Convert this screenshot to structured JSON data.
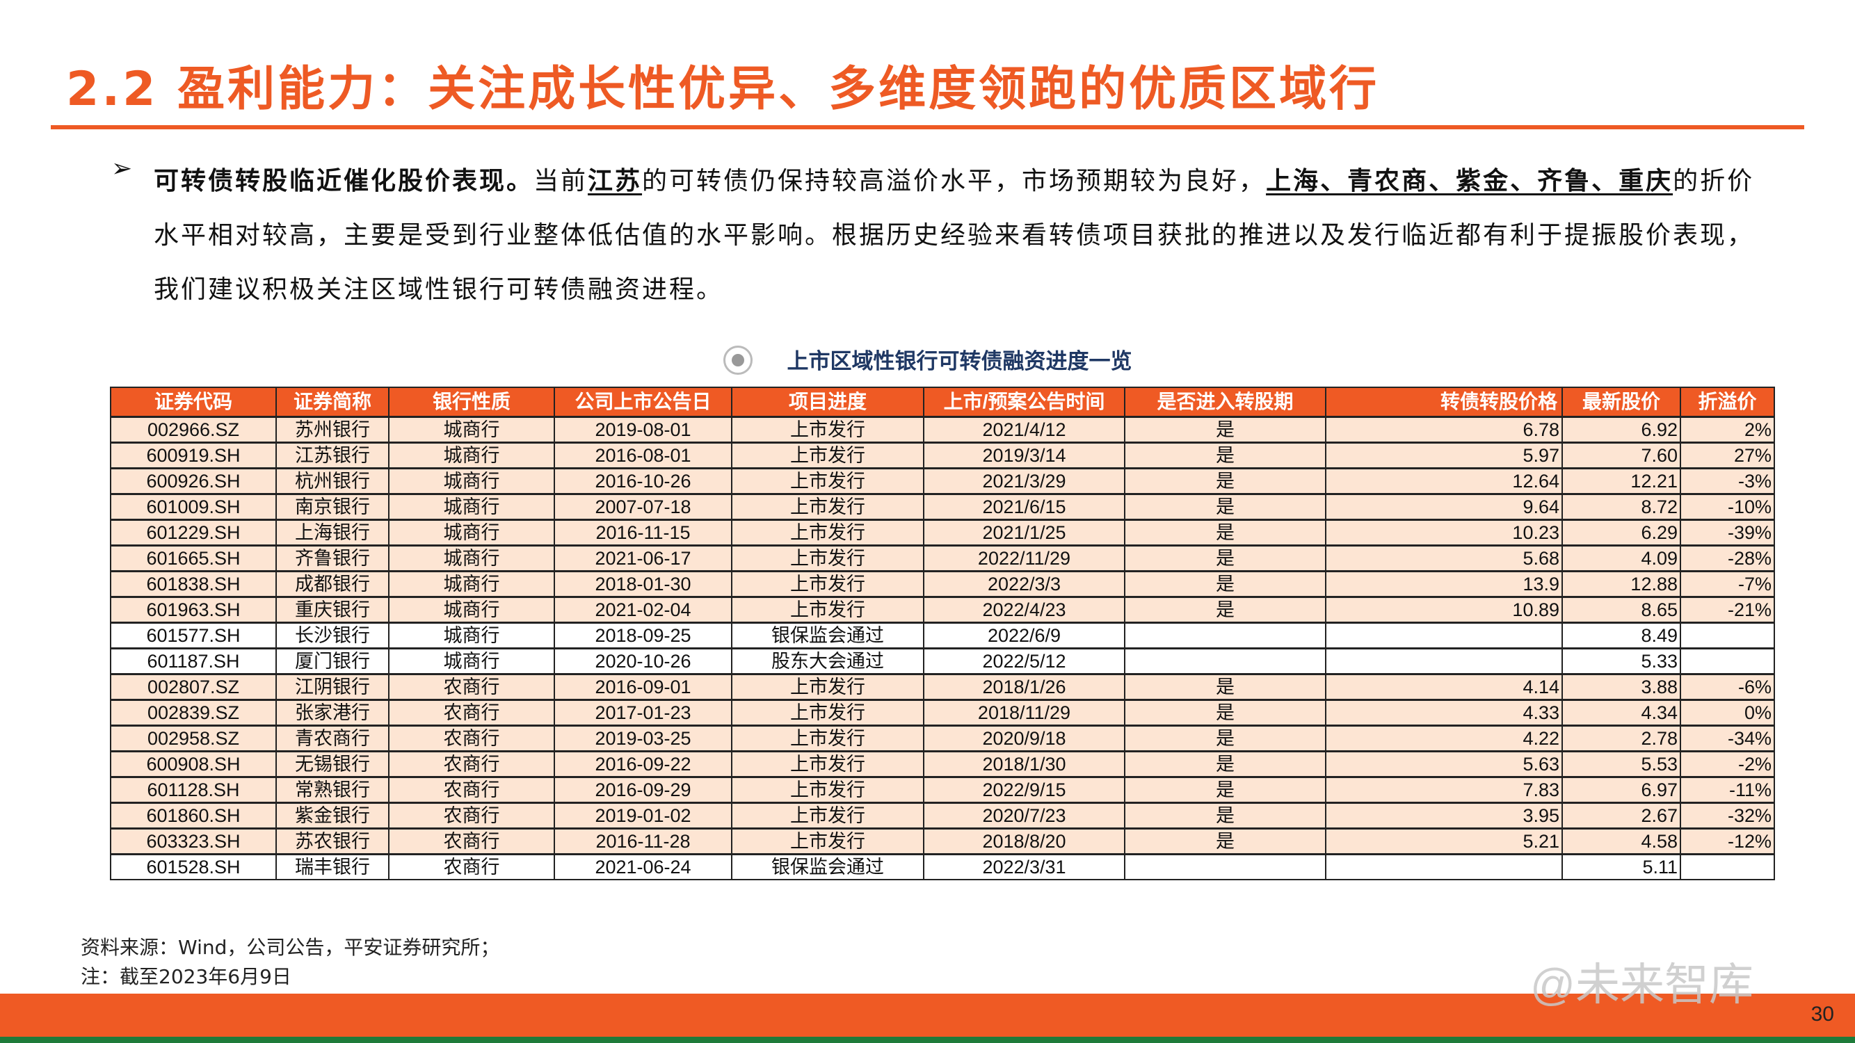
{
  "title": "2.2 盈利能力：关注成长性优异、多维度领跑的优质区域行",
  "bullet": {
    "lead": "可转债转股临近催化股价表现。",
    "t1": "当前",
    "u1": "江苏",
    "t2": "的可转债仍保持较高溢价水平，市场预期较为良好，",
    "u2": "上海、青农商、紫金、齐鲁、重庆",
    "t3": "的折价水平相对较高，主要是受到行业整体低估值的水平影响。根据历史经验来看转债项目获批的推进以及发行临近都有利于提振股价表现，我们建议积极关注区域性银行可转债融资进程。"
  },
  "caption": "上市区域性银行可转债融资进度一览",
  "table": {
    "headers": [
      "证券代码",
      "证券简称",
      "银行性质",
      "公司上市公告日",
      "项目进度",
      "上市/预案公告时间",
      "是否进入转股期",
      "转债转股价格",
      "最新股价",
      "折溢价"
    ],
    "rows": [
      [
        "002966.SZ",
        "苏州银行",
        "城商行",
        "2019-08-01",
        "上市发行",
        "2021/4/12",
        "是",
        "6.78",
        "6.92",
        "2%"
      ],
      [
        "600919.SH",
        "江苏银行",
        "城商行",
        "2016-08-01",
        "上市发行",
        "2019/3/14",
        "是",
        "5.97",
        "7.60",
        "27%"
      ],
      [
        "600926.SH",
        "杭州银行",
        "城商行",
        "2016-10-26",
        "上市发行",
        "2021/3/29",
        "是",
        "12.64",
        "12.21",
        "-3%"
      ],
      [
        "601009.SH",
        "南京银行",
        "城商行",
        "2007-07-18",
        "上市发行",
        "2021/6/15",
        "是",
        "9.64",
        "8.72",
        "-10%"
      ],
      [
        "601229.SH",
        "上海银行",
        "城商行",
        "2016-11-15",
        "上市发行",
        "2021/1/25",
        "是",
        "10.23",
        "6.29",
        "-39%"
      ],
      [
        "601665.SH",
        "齐鲁银行",
        "城商行",
        "2021-06-17",
        "上市发行",
        "2022/11/29",
        "是",
        "5.68",
        "4.09",
        "-28%"
      ],
      [
        "601838.SH",
        "成都银行",
        "城商行",
        "2018-01-30",
        "上市发行",
        "2022/3/3",
        "是",
        "13.9",
        "12.88",
        "-7%"
      ],
      [
        "601963.SH",
        "重庆银行",
        "城商行",
        "2021-02-04",
        "上市发行",
        "2022/4/23",
        "是",
        "10.89",
        "8.65",
        "-21%"
      ],
      [
        "601577.SH",
        "长沙银行",
        "城商行",
        "2018-09-25",
        "银保监会通过",
        "2022/6/9",
        "",
        "",
        "8.49",
        ""
      ],
      [
        "601187.SH",
        "厦门银行",
        "城商行",
        "2020-10-26",
        "股东大会通过",
        "2022/5/12",
        "",
        "",
        "5.33",
        ""
      ],
      [
        "002807.SZ",
        "江阴银行",
        "农商行",
        "2016-09-01",
        "上市发行",
        "2018/1/26",
        "是",
        "4.14",
        "3.88",
        "-6%"
      ],
      [
        "002839.SZ",
        "张家港行",
        "农商行",
        "2017-01-23",
        "上市发行",
        "2018/11/29",
        "是",
        "4.33",
        "4.34",
        "0%"
      ],
      [
        "002958.SZ",
        "青农商行",
        "农商行",
        "2019-03-25",
        "上市发行",
        "2020/9/18",
        "是",
        "4.22",
        "2.78",
        "-34%"
      ],
      [
        "600908.SH",
        "无锡银行",
        "农商行",
        "2016-09-22",
        "上市发行",
        "2018/1/30",
        "是",
        "5.63",
        "5.53",
        "-2%"
      ],
      [
        "601128.SH",
        "常熟银行",
        "农商行",
        "2016-09-29",
        "上市发行",
        "2022/9/15",
        "是",
        "7.83",
        "6.97",
        "-11%"
      ],
      [
        "601860.SH",
        "紫金银行",
        "农商行",
        "2019-01-02",
        "上市发行",
        "2020/7/23",
        "是",
        "3.95",
        "2.67",
        "-32%"
      ],
      [
        "603323.SH",
        "苏农银行",
        "农商行",
        "2016-11-28",
        "上市发行",
        "2018/8/20",
        "是",
        "5.21",
        "4.58",
        "-12%"
      ],
      [
        "601528.SH",
        "瑞丰银行",
        "农商行",
        "2021-06-24",
        "银保监会通过",
        "2022/3/31",
        "",
        "",
        "5.11",
        ""
      ]
    ]
  },
  "footer": {
    "source": "资料来源：Wind，公司公告，平安证券研究所；",
    "note": "注：截至2023年6月9日"
  },
  "watermark": "@未来智库",
  "page_number": "30",
  "colors": {
    "accent": "#EF5A24",
    "row_highlight": "#FDE5D3",
    "caption": "#1F3864",
    "bottom_line": "#1E7B3A"
  }
}
